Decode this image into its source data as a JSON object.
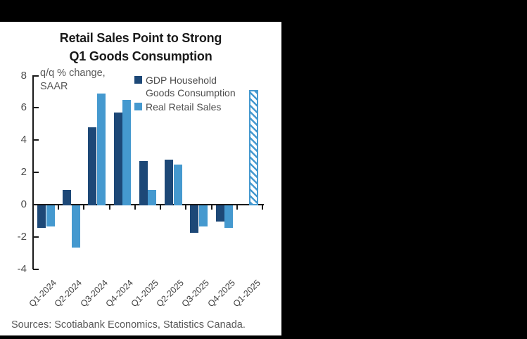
{
  "title_lines": {
    "line1": "Retail Sales Point to Strong",
    "line2": "Q1 Goods Consumption"
  },
  "annotation_lines": {
    "line1": "q/q % change,",
    "line2": "SAAR"
  },
  "source": "Sources: Scotiabank Economics, Statistics Canada.",
  "colors": {
    "gdp_series": "#1d4877",
    "retail_series": "#4599cf",
    "axis": "#1a1a1a",
    "panel_bg": "#ffffff",
    "letterbox_bg": "#000000"
  },
  "chart_data": {
    "type": "bar",
    "title": "Retail Sales Point to Strong Q1 Goods Consumption",
    "annotation": "q/q % change, SAAR",
    "categories": [
      "Q1-2024",
      "Q2-2024",
      "Q3-2024",
      "Q4-2024",
      "Q1-2025",
      "Q2-2025",
      "Q3-2025",
      "Q4-2025",
      "Q1-2025"
    ],
    "series": [
      {
        "name": "GDP Household Goods Consumption",
        "color": "#1d4877",
        "values": [
          -1.4,
          0.9,
          4.8,
          5.7,
          2.7,
          2.8,
          -1.7,
          -1.0,
          null
        ]
      },
      {
        "name": "Real Retail Sales",
        "color": "#4599cf",
        "values": [
          -1.3,
          -2.6,
          6.9,
          6.5,
          0.9,
          2.5,
          -1.3,
          -1.4,
          7.1
        ],
        "hatched_indices": [
          8
        ]
      }
    ],
    "ylim": [
      -4,
      8
    ],
    "yticks": [
      8,
      6,
      4,
      2,
      0,
      -2,
      -4
    ],
    "legend_position": "top-right",
    "grid": false
  }
}
